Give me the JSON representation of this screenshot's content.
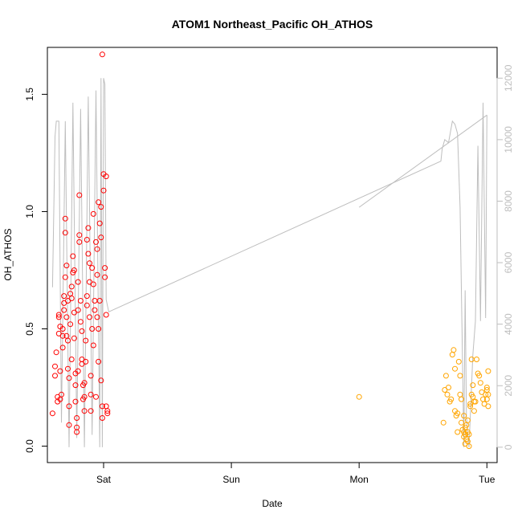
{
  "chart_data": {
    "type": "scatter",
    "title": "ATOM1 Northeast_Pacific OH_ATHOS",
    "xlabel": "Date",
    "ylabel": "OH_ATHOS",
    "y2label": "",
    "x_ticks": [
      "Sat",
      "Sun",
      "Mon",
      "Tue"
    ],
    "x_tick_values": [
      1.0,
      2.0,
      3.0,
      4.0
    ],
    "xlim": [
      0.56,
      4.08
    ],
    "ylim": [
      -0.07,
      1.7
    ],
    "y_ticks": [
      0.0,
      0.5,
      1.0,
      1.5
    ],
    "y_tick_labels": [
      "0.0",
      "0.5",
      "1.0",
      "1.5"
    ],
    "y2lim": [
      -500,
      13000
    ],
    "y2_ticks": [
      0,
      2000,
      4000,
      6000,
      8000,
      10000,
      12000
    ],
    "y2_tick_labels": [
      "0",
      "2000",
      "4000",
      "6000",
      "8000",
      "10000",
      "12000"
    ],
    "grid": false,
    "legend": "none",
    "series": [
      {
        "color": "#ff0000",
        "marker": "open-circle",
        "points": [
          [
            0.6,
            0.14
          ],
          [
            0.62,
            0.3
          ],
          [
            0.62,
            0.34
          ],
          [
            0.63,
            0.4
          ],
          [
            0.64,
            0.19
          ],
          [
            0.64,
            0.21
          ],
          [
            0.65,
            0.56
          ],
          [
            0.65,
            0.48
          ],
          [
            0.65,
            0.55
          ],
          [
            0.66,
            0.51
          ],
          [
            0.66,
            0.2
          ],
          [
            0.66,
            0.32
          ],
          [
            0.67,
            0.22
          ],
          [
            0.68,
            0.5
          ],
          [
            0.68,
            0.47
          ],
          [
            0.68,
            0.42
          ],
          [
            0.69,
            0.58
          ],
          [
            0.69,
            0.61
          ],
          [
            0.69,
            0.64
          ],
          [
            0.7,
            0.72
          ],
          [
            0.7,
            0.97
          ],
          [
            0.7,
            0.91
          ],
          [
            0.71,
            0.77
          ],
          [
            0.71,
            0.55
          ],
          [
            0.71,
            0.47
          ],
          [
            0.72,
            0.45
          ],
          [
            0.72,
            0.62
          ],
          [
            0.72,
            0.33
          ],
          [
            0.73,
            0.29
          ],
          [
            0.73,
            0.17
          ],
          [
            0.73,
            0.09
          ],
          [
            0.74,
            0.65
          ],
          [
            0.74,
            0.52
          ],
          [
            0.75,
            0.37
          ],
          [
            0.75,
            0.63
          ],
          [
            0.75,
            0.68
          ],
          [
            0.76,
            0.81
          ],
          [
            0.76,
            0.74
          ],
          [
            0.77,
            0.75
          ],
          [
            0.77,
            0.57
          ],
          [
            0.77,
            0.46
          ],
          [
            0.78,
            0.31
          ],
          [
            0.78,
            0.26
          ],
          [
            0.78,
            0.19
          ],
          [
            0.79,
            0.12
          ],
          [
            0.79,
            0.06
          ],
          [
            0.79,
            0.08
          ],
          [
            0.8,
            0.32
          ],
          [
            0.8,
            0.58
          ],
          [
            0.8,
            0.7
          ],
          [
            0.81,
            0.9
          ],
          [
            0.81,
            1.07
          ],
          [
            0.81,
            0.87
          ],
          [
            0.82,
            0.53
          ],
          [
            0.82,
            0.62
          ],
          [
            0.83,
            0.37
          ],
          [
            0.83,
            0.35
          ],
          [
            0.83,
            0.49
          ],
          [
            0.84,
            0.26
          ],
          [
            0.84,
            0.2
          ],
          [
            0.85,
            0.15
          ],
          [
            0.85,
            0.21
          ],
          [
            0.85,
            0.27
          ],
          [
            0.86,
            0.36
          ],
          [
            0.86,
            0.45
          ],
          [
            0.87,
            0.64
          ],
          [
            0.87,
            0.6
          ],
          [
            0.87,
            0.88
          ],
          [
            0.88,
            0.93
          ],
          [
            0.88,
            0.82
          ],
          [
            0.89,
            0.7
          ],
          [
            0.89,
            0.78
          ],
          [
            0.89,
            0.55
          ],
          [
            0.9,
            0.3
          ],
          [
            0.9,
            0.22
          ],
          [
            0.9,
            0.15
          ],
          [
            0.91,
            0.76
          ],
          [
            0.91,
            0.5
          ],
          [
            0.92,
            0.43
          ],
          [
            0.92,
            0.99
          ],
          [
            0.92,
            0.69
          ],
          [
            0.93,
            0.62
          ],
          [
            0.93,
            0.58
          ],
          [
            0.94,
            0.21
          ],
          [
            0.94,
            0.87
          ],
          [
            0.95,
            0.84
          ],
          [
            0.95,
            0.73
          ],
          [
            0.95,
            0.55
          ],
          [
            0.96,
            0.5
          ],
          [
            0.96,
            0.36
          ],
          [
            0.96,
            1.04
          ],
          [
            0.97,
            0.95
          ],
          [
            0.97,
            0.62
          ],
          [
            0.98,
            1.02
          ],
          [
            0.98,
            0.89
          ],
          [
            0.98,
            0.28
          ],
          [
            0.99,
            0.17
          ],
          [
            0.99,
            0.12
          ],
          [
            0.99,
            1.67
          ],
          [
            1.0,
            1.16
          ],
          [
            1.0,
            1.09
          ],
          [
            1.01,
            0.72
          ],
          [
            1.01,
            0.76
          ],
          [
            1.02,
            0.56
          ],
          [
            1.02,
            1.15
          ],
          [
            1.02,
            0.17
          ],
          [
            1.03,
            0.14
          ],
          [
            1.03,
            0.15
          ]
        ]
      },
      {
        "color": "#ffa500",
        "marker": "open-circle",
        "points": [
          [
            3.0,
            0.21
          ],
          [
            3.66,
            0.1
          ],
          [
            3.67,
            0.24
          ],
          [
            3.68,
            0.3
          ],
          [
            3.69,
            0.22
          ],
          [
            3.7,
            0.25
          ],
          [
            3.71,
            0.19
          ],
          [
            3.72,
            0.2
          ],
          [
            3.73,
            0.39
          ],
          [
            3.74,
            0.41
          ],
          [
            3.75,
            0.33
          ],
          [
            3.75,
            0.15
          ],
          [
            3.76,
            0.13
          ],
          [
            3.77,
            0.14
          ],
          [
            3.77,
            0.06
          ],
          [
            3.78,
            0.36
          ],
          [
            3.79,
            0.3
          ],
          [
            3.79,
            0.22
          ],
          [
            3.8,
            0.2
          ],
          [
            3.8,
            0.1
          ],
          [
            3.81,
            0.07
          ],
          [
            3.82,
            0.13
          ],
          [
            3.82,
            0.04
          ],
          [
            3.82,
            0.06
          ],
          [
            3.83,
            0.01
          ],
          [
            3.83,
            0.08
          ],
          [
            3.83,
            0.05
          ],
          [
            3.84,
            0.03
          ],
          [
            3.84,
            0.09
          ],
          [
            3.85,
            0.02
          ],
          [
            3.85,
            0.06
          ],
          [
            3.85,
            0.11
          ],
          [
            3.86,
            0.0
          ],
          [
            3.86,
            0.05
          ],
          [
            3.87,
            0.18
          ],
          [
            3.87,
            0.17
          ],
          [
            3.88,
            0.22
          ],
          [
            3.88,
            0.37
          ],
          [
            3.89,
            0.26
          ],
          [
            3.89,
            0.21
          ],
          [
            3.9,
            0.19
          ],
          [
            3.9,
            0.15
          ],
          [
            3.91,
            0.19
          ],
          [
            3.92,
            0.37
          ],
          [
            3.93,
            0.31
          ],
          [
            3.94,
            0.3
          ],
          [
            3.95,
            0.27
          ],
          [
            3.96,
            0.23
          ],
          [
            3.97,
            0.2
          ],
          [
            3.98,
            0.18
          ],
          [
            3.99,
            0.22
          ],
          [
            4.0,
            0.24
          ],
          [
            4.0,
            0.25
          ],
          [
            4.0,
            0.2
          ],
          [
            4.01,
            0.17
          ],
          [
            4.01,
            0.22
          ],
          [
            4.01,
            0.32
          ]
        ]
      }
    ],
    "secondary_line": {
      "color": "#bebebe",
      "axis": "right",
      "segments": [
        [
          [
            0.6,
            5200
          ],
          [
            0.62,
            10100
          ],
          [
            0.63,
            10600
          ],
          [
            0.65,
            10600
          ],
          [
            0.67,
            800
          ],
          [
            0.7,
            10600
          ],
          [
            0.73,
            0
          ],
          [
            0.76,
            11200
          ],
          [
            0.79,
            300
          ],
          [
            0.82,
            11000
          ],
          [
            0.85,
            0
          ],
          [
            0.88,
            11400
          ],
          [
            0.91,
            400
          ],
          [
            0.94,
            11600
          ],
          [
            0.97,
            0
          ],
          [
            0.98,
            12000
          ],
          [
            0.99,
            0
          ],
          [
            1.0,
            12000
          ],
          [
            1.01,
            11800
          ],
          [
            1.02,
            4800
          ],
          [
            1.04,
            4400
          ],
          [
            3.64,
            9300
          ],
          [
            3.65,
            9700
          ],
          [
            3.67,
            10000
          ],
          [
            3.7,
            9900
          ],
          [
            3.73,
            10600
          ],
          [
            3.75,
            10500
          ],
          [
            3.77,
            10200
          ],
          [
            3.79,
            7800
          ],
          [
            3.82,
            0
          ],
          [
            3.83,
            5100
          ],
          [
            3.84,
            1000
          ],
          [
            3.86,
            0
          ],
          [
            3.89,
            3000
          ],
          [
            3.91,
            4100
          ],
          [
            3.93,
            9800
          ],
          [
            3.95,
            4100
          ],
          [
            3.97,
            11200
          ],
          [
            3.99,
            4200
          ],
          [
            4.0,
            10800
          ]
        ],
        [
          [
            3.0,
            7800
          ],
          [
            4.0,
            10800
          ]
        ]
      ]
    }
  }
}
